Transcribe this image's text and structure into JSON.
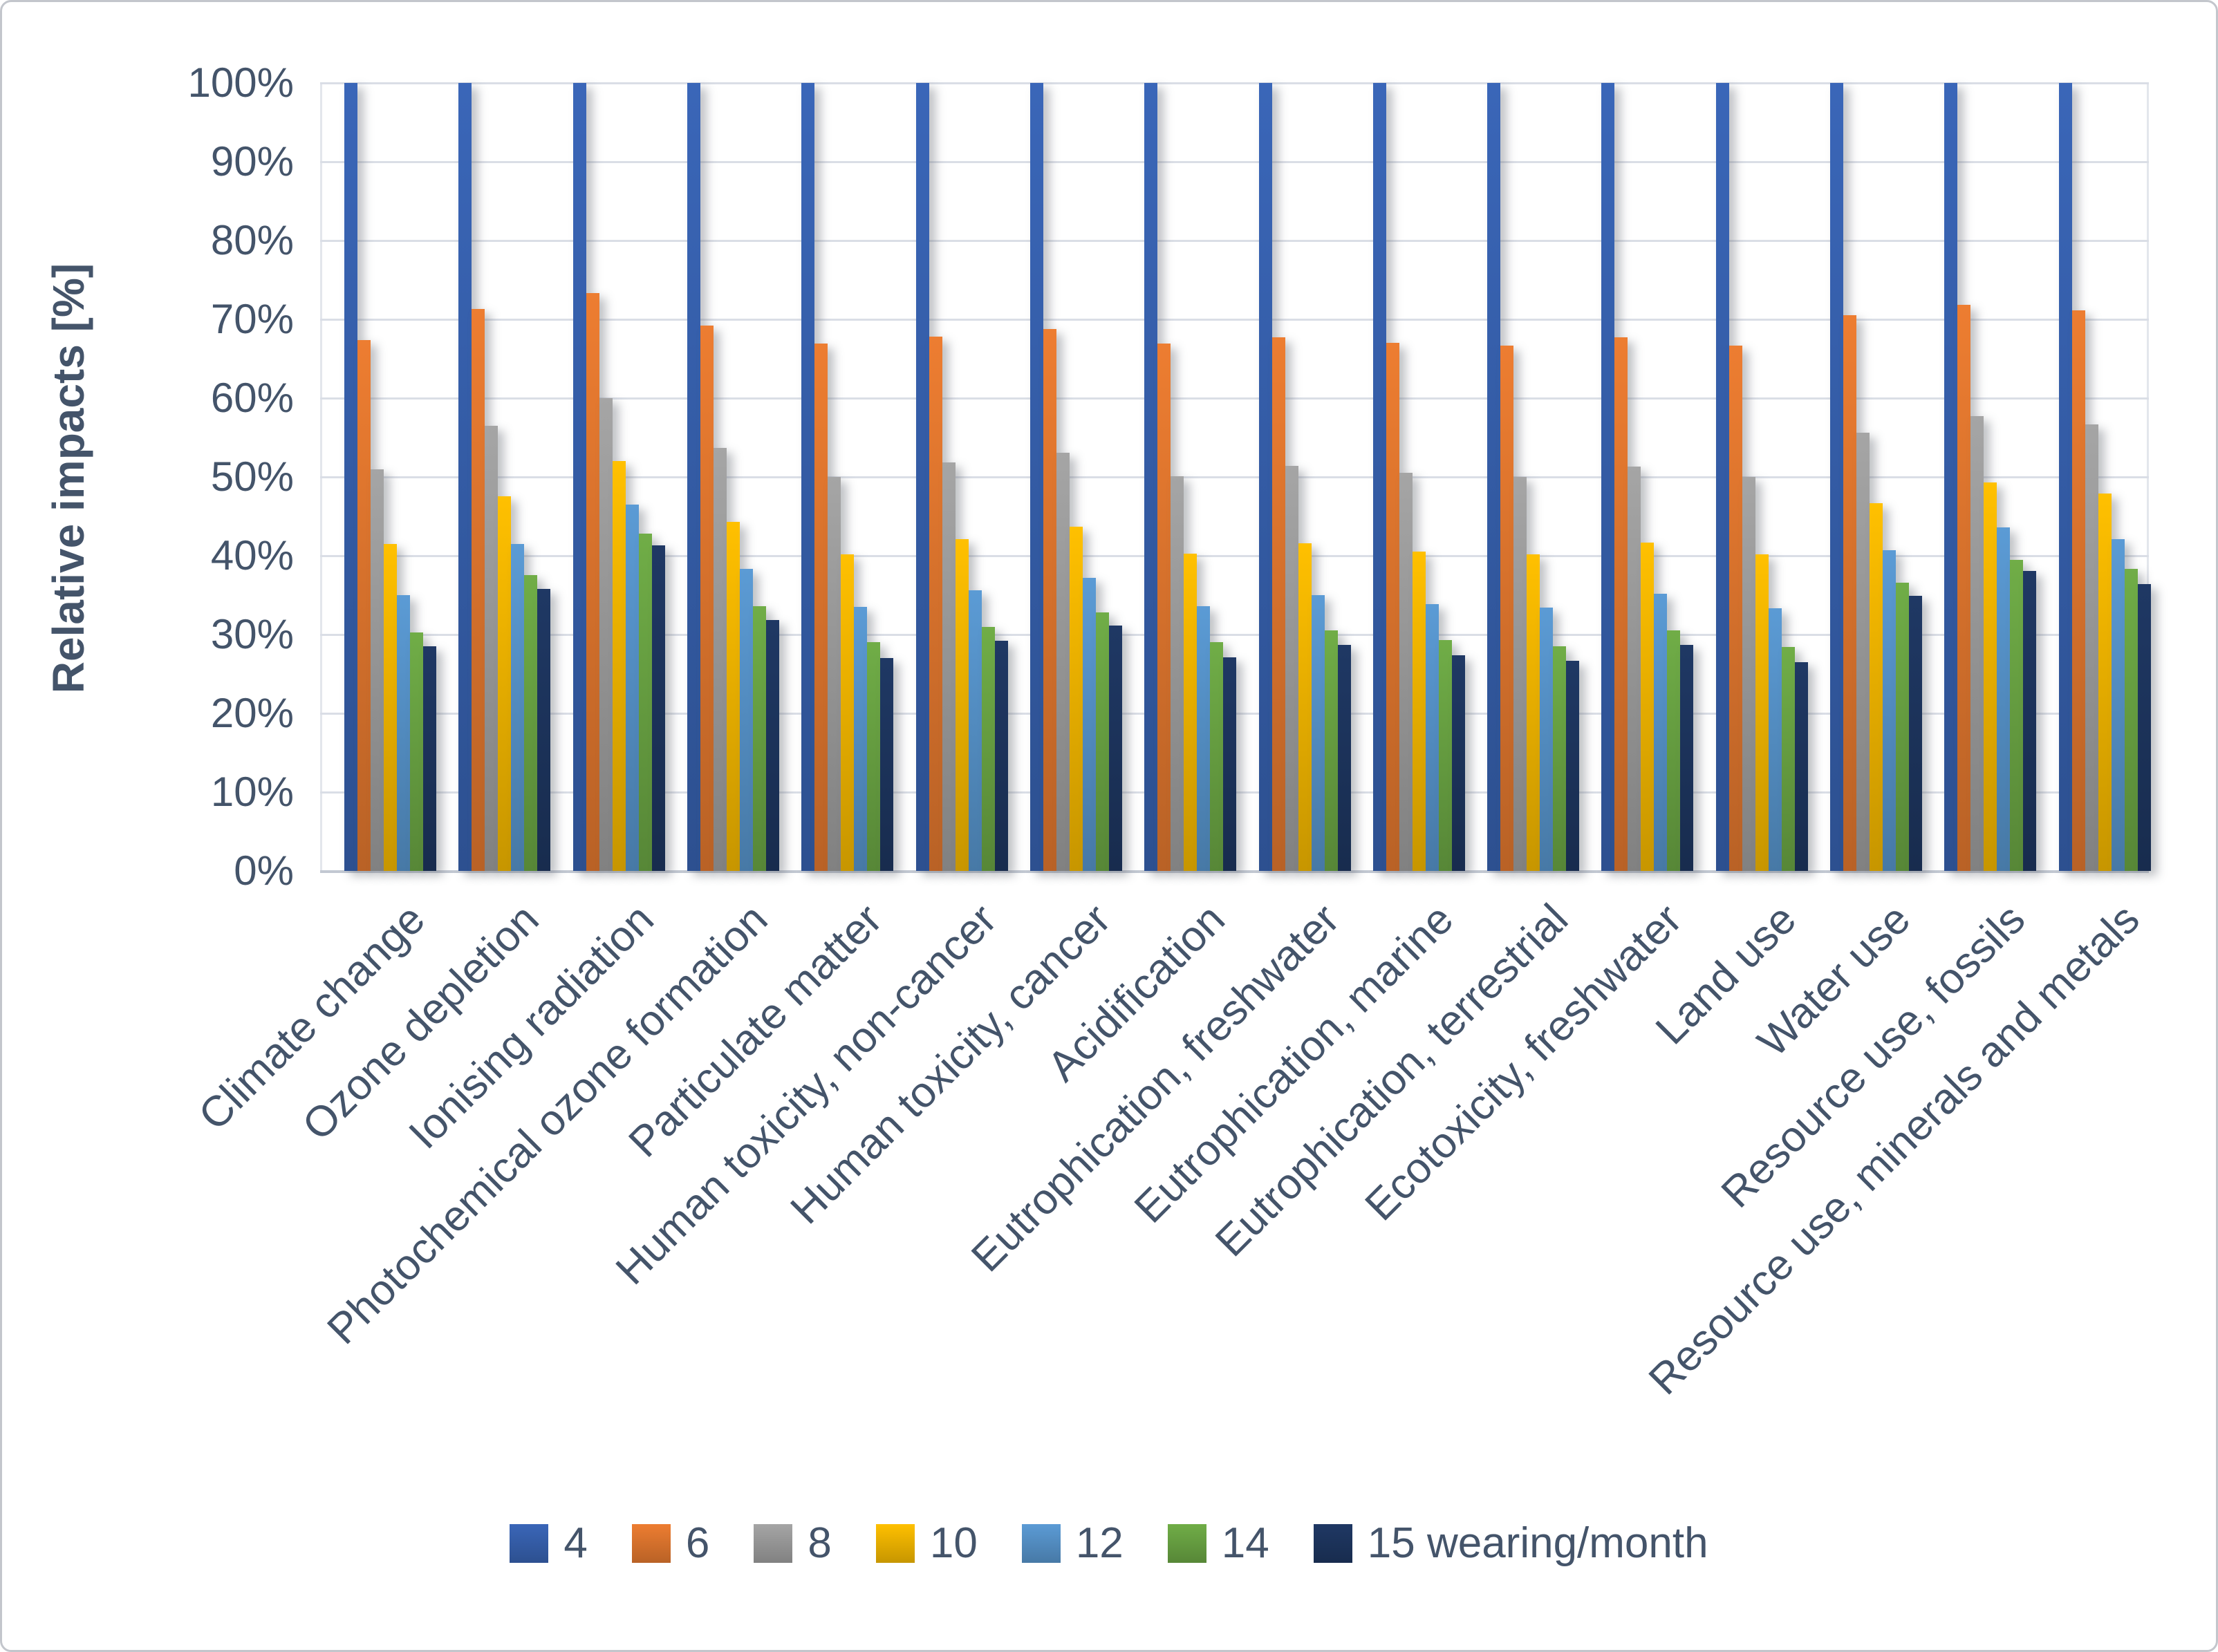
{
  "figure": {
    "background": "#ffffff",
    "border_color": "#c3c6cc",
    "text_color": "#44546A",
    "gridline_color": "#dadee6"
  },
  "y_axis": {
    "title": "Relative impacts [%]",
    "min": 0,
    "max": 100,
    "step": 10,
    "tick_suffix": "%",
    "tick_labels": [
      "0%",
      "10%",
      "20%",
      "30%",
      "40%",
      "50%",
      "60%",
      "70%",
      "80%",
      "90%",
      "100%"
    ]
  },
  "legend": {
    "position": "bottom",
    "items": [
      {
        "label": "4",
        "color": "#3A66B8"
      },
      {
        "label": "6",
        "color": "#ED7D31"
      },
      {
        "label": "8",
        "color": "#A5A5A5"
      },
      {
        "label": "10",
        "color": "#FFC000"
      },
      {
        "label": "12",
        "color": "#5B9BD5"
      },
      {
        "label": "14",
        "color": "#70AD47"
      },
      {
        "label": "15 wearing/month",
        "color": "#1F3864"
      }
    ]
  },
  "chart_data": {
    "type": "bar",
    "title": "",
    "xlabel": "",
    "ylabel": "Relative impacts [%]",
    "ylim": [
      0,
      100
    ],
    "grid": true,
    "legend_position": "bottom",
    "categories": [
      "Climate change",
      "Ozone depletion",
      "Ionising radiation",
      "Photochemical ozone formation",
      "Particulate matter",
      "Human toxicity, non-cancer",
      "Human toxicity, cancer",
      "Acidification",
      "Eutrophication, freshwater",
      "Eutrophication, marine",
      "Eutrophication, terrestrial",
      "Ecotoxicity, freshwater",
      "Land use",
      "Water use",
      "Resource use, fossils",
      "Resource use, minerals and metals"
    ],
    "series": [
      {
        "name": "4",
        "color": "#3A66B8",
        "values": [
          100,
          100,
          100,
          100,
          100,
          100,
          100,
          100,
          100,
          100,
          100,
          100,
          100,
          100,
          100,
          100
        ]
      },
      {
        "name": "6",
        "color": "#ED7D31",
        "values": [
          67.4,
          71.3,
          73.3,
          69.2,
          66.9,
          67.8,
          68.8,
          66.9,
          67.7,
          67.0,
          66.7,
          67.7,
          66.7,
          70.5,
          71.8,
          71.1
        ]
      },
      {
        "name": "8",
        "color": "#A5A5A5",
        "values": [
          51.0,
          56.5,
          60.0,
          53.7,
          50.0,
          51.8,
          53.1,
          50.1,
          51.4,
          50.5,
          50.0,
          51.3,
          50.0,
          55.6,
          57.7,
          56.7
        ]
      },
      {
        "name": "10",
        "color": "#FFC000",
        "values": [
          41.5,
          47.5,
          52.0,
          44.3,
          40.2,
          42.1,
          43.7,
          40.3,
          41.6,
          40.5,
          40.2,
          41.7,
          40.2,
          46.7,
          49.3,
          47.9
        ]
      },
      {
        "name": "12",
        "color": "#5B9BD5",
        "values": [
          35.0,
          41.5,
          46.5,
          38.3,
          33.5,
          35.6,
          37.2,
          33.6,
          35.0,
          33.9,
          33.4,
          35.2,
          33.3,
          40.7,
          43.6,
          42.1
        ]
      },
      {
        "name": "14",
        "color": "#70AD47",
        "values": [
          30.3,
          37.5,
          42.8,
          33.6,
          29.0,
          31.0,
          32.8,
          29.0,
          30.5,
          29.3,
          28.5,
          30.5,
          28.4,
          36.6,
          39.5,
          38.3
        ]
      },
      {
        "name": "15 wearing/month",
        "color": "#1F3864",
        "values": [
          28.5,
          35.8,
          41.3,
          31.8,
          27.0,
          29.2,
          31.1,
          27.1,
          28.7,
          27.4,
          26.7,
          28.7,
          26.5,
          34.9,
          38.1,
          36.4
        ]
      }
    ]
  }
}
